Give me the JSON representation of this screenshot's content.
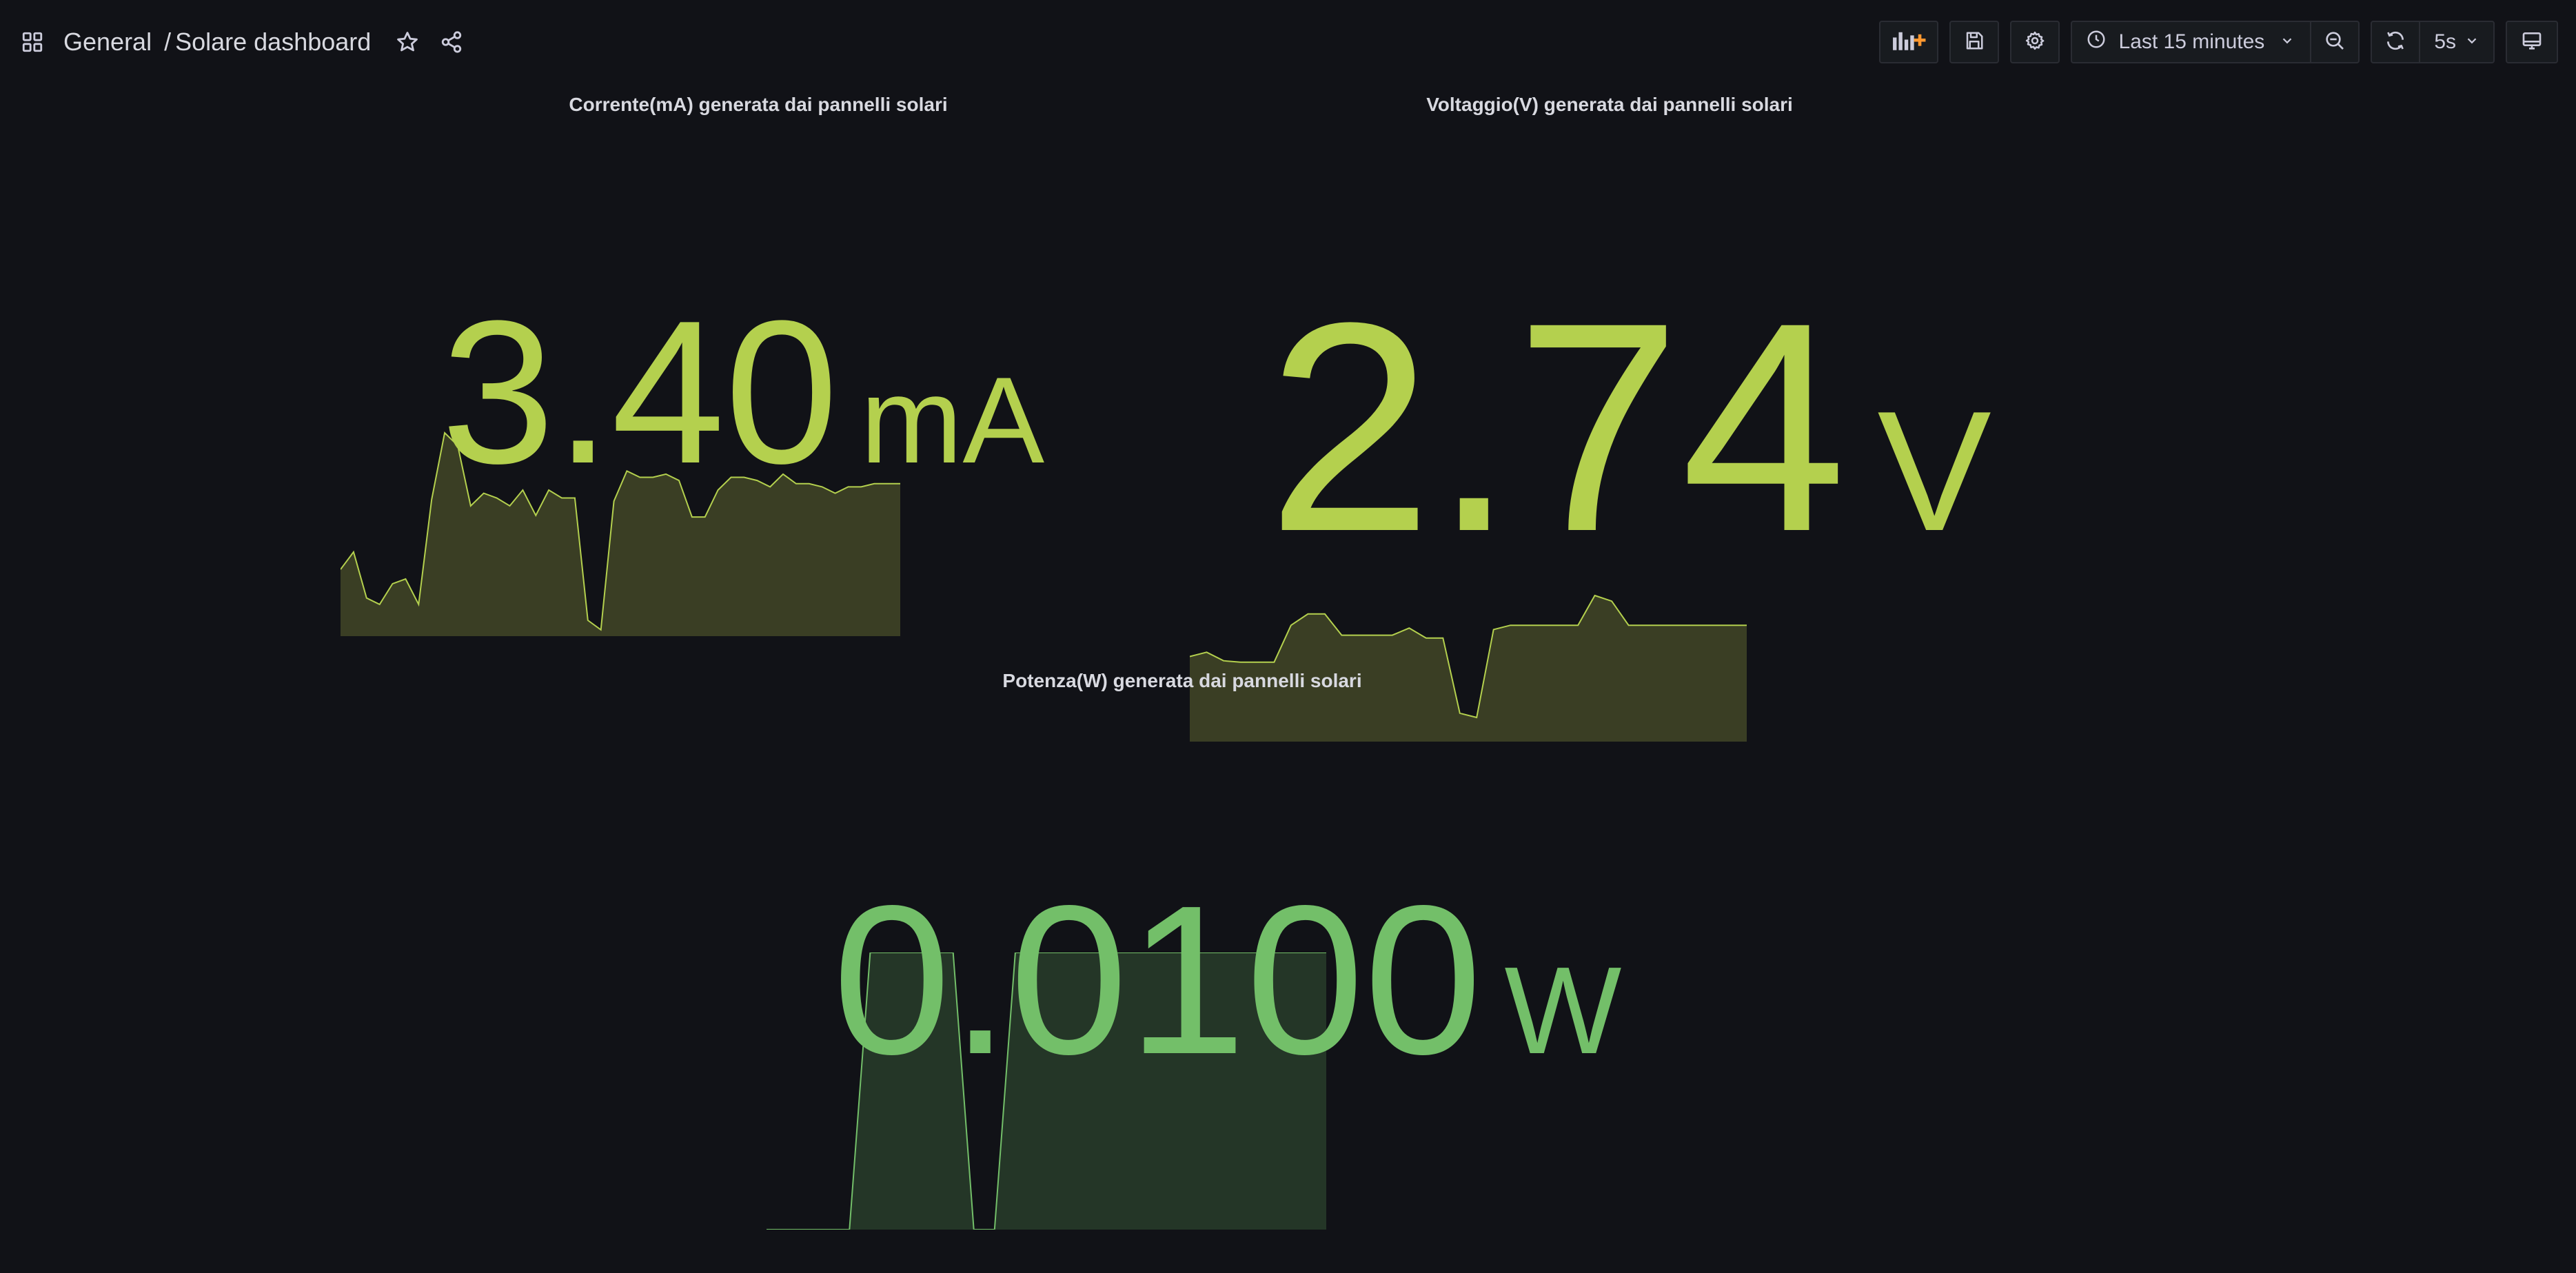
{
  "header": {
    "breadcrumb_folder": "General",
    "breadcrumb_separator": "/",
    "dashboard_title": "Solare dashboard",
    "time_range": "Last 15 minutes",
    "refresh_interval": "5s",
    "icons": {
      "apps": "dashboards-grid-icon",
      "star": "star-icon",
      "share": "share-icon",
      "add_panel": "add-panel-icon",
      "save": "save-icon",
      "settings": "gear-icon",
      "clock": "clock-icon",
      "chevron": "chevron-down-icon",
      "zoom_out": "zoom-out-icon",
      "refresh": "refresh-icon",
      "tv": "tv-mode-icon"
    }
  },
  "panels": {
    "current": {
      "title": "Corrente(mA) generata dai pannelli solari",
      "value": "3.40",
      "unit": "mA",
      "color": "#b4d04e",
      "spark_fill": "#3a3e24",
      "sparkline": [
        0.42,
        0.53,
        0.24,
        0.2,
        0.33,
        0.36,
        0.2,
        0.86,
        1.28,
        1.2,
        0.82,
        0.9,
        0.87,
        0.82,
        0.92,
        0.76,
        0.92,
        0.87,
        0.87,
        0.1,
        0.04,
        0.85,
        1.04,
        1.0,
        1.0,
        1.02,
        0.98,
        0.75,
        0.75,
        0.92,
        1.0,
        1.0,
        0.98,
        0.94,
        1.02,
        0.96,
        0.96,
        0.94,
        0.9,
        0.94,
        0.94,
        0.96,
        0.96,
        0.96
      ]
    },
    "voltage": {
      "title": "Voltaggio(V) generata dai pannelli solari",
      "value": "2.74",
      "unit": "V",
      "color": "#b4d04e",
      "spark_fill": "#3a3e24",
      "sparkline": [
        0.6,
        0.63,
        0.57,
        0.56,
        0.56,
        0.56,
        0.82,
        0.9,
        0.9,
        0.75,
        0.75,
        0.75,
        0.75,
        0.8,
        0.73,
        0.73,
        0.2,
        0.17,
        0.79,
        0.82,
        0.82,
        0.82,
        0.82,
        0.82,
        1.03,
        0.99,
        0.82,
        0.82,
        0.82,
        0.82,
        0.82,
        0.82,
        0.82,
        0.82
      ]
    },
    "power": {
      "title": "Potenza(W) generata dai pannelli solari",
      "value": "0.0100",
      "unit": "W",
      "color": "#73bf69",
      "spark_fill": "#243627",
      "sparkline": [
        0.0,
        0.0,
        0.0,
        0.0,
        0.0,
        1.0,
        1.0,
        1.0,
        1.0,
        1.0,
        0.0,
        0.0,
        1.0,
        1.0,
        1.0,
        1.0,
        1.0,
        1.0,
        1.0,
        1.0,
        1.0,
        1.0,
        1.0,
        1.0,
        1.0,
        1.0,
        1.0,
        1.0
      ]
    }
  }
}
